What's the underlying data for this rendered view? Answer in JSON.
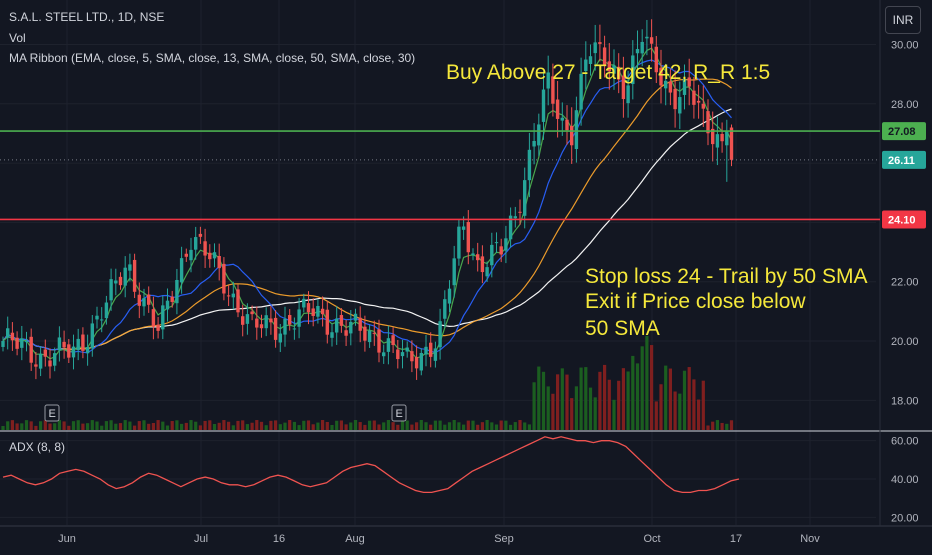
{
  "header": {
    "symbol_line": "S.A.L. STEEL LTD., 1D, NSE",
    "vol_label": "Vol",
    "ribbon_label": "MA Ribbon (EMA, close, 5, SMA, close, 13, SMA, close, 50, SMA, close, 30)",
    "currency": "INR"
  },
  "annotations": {
    "buy": "Buy Above 27 - Target 42, R_R 1:5",
    "stop_lines": [
      "Stop loss 24 - Trail by 50 SMA",
      "Exit if Price close below",
      "50 SMA"
    ]
  },
  "colors": {
    "background": "#131722",
    "up": "#26a69a",
    "down": "#ef5350",
    "vol_up": "#1b5e20",
    "vol_down": "#7f1f1f",
    "ema5": "#4caf50",
    "sma13": "#2962ff",
    "sma50": "#ffffff",
    "sma30": "#f7a22c",
    "adx": "#ef5350",
    "target_line": "#4caf50",
    "stop_line": "#f23645",
    "text_annotation": "#f5e83b"
  },
  "chart_data": [
    {
      "type": "candlestick",
      "title": "S.A.L. STEEL LTD., 1D, NSE",
      "y_axis": {
        "ylim": [
          17.0,
          31.5
        ],
        "ticks": [
          "18.00",
          "20.00",
          "22.00",
          "24.00",
          "26.00",
          "28.00",
          "30.00"
        ],
        "side": "right"
      },
      "x_axis": {
        "tick_labels": [
          "Jun",
          "Jul",
          "16",
          "Aug",
          "Sep",
          "Oct",
          "17",
          "Nov"
        ]
      },
      "price_labels": [
        {
          "value": 27.08,
          "label": "27.08",
          "color": "#4caf50"
        },
        {
          "value": 26.11,
          "label": "26.11",
          "color": "#26a69a"
        },
        {
          "value": 24.1,
          "label": "24.10",
          "color": "#f23645"
        }
      ],
      "horizontal_lines": [
        {
          "value": 27.08,
          "label": "target-entry"
        },
        {
          "value": 24.1,
          "label": "stop-loss"
        }
      ],
      "earnings_markers": [
        "E",
        "E"
      ],
      "moving_averages": [
        "EMA 5",
        "SMA 13",
        "SMA 50",
        "SMA 30"
      ],
      "volume_series": "Vol",
      "grid": true
    },
    {
      "type": "line",
      "title": "ADX (8, 8)",
      "series": [
        {
          "values": [
            41,
            42,
            40,
            38,
            37,
            38,
            40,
            43,
            44,
            45,
            44,
            42,
            40,
            37,
            35,
            36,
            38,
            41,
            43,
            42,
            40,
            38,
            36,
            38,
            40,
            41,
            40,
            38,
            37,
            37,
            36,
            37,
            39,
            41,
            42,
            41,
            39,
            37,
            36,
            37,
            38,
            41,
            44,
            46,
            47,
            48,
            47,
            44,
            41,
            38,
            36,
            34,
            33,
            33,
            34,
            35,
            38,
            41,
            44,
            46,
            48,
            50,
            52,
            54,
            56,
            58,
            60,
            62,
            61,
            62,
            61,
            60,
            60,
            59,
            60,
            60,
            59,
            57,
            53,
            49,
            45,
            41,
            37,
            34,
            33,
            33,
            34,
            34,
            35,
            37,
            39,
            40
          ]
        }
      ],
      "y_axis": {
        "ylim": [
          16.0,
          64.0
        ],
        "ticks": [
          "20.00",
          "40.00",
          "60.00"
        ],
        "side": "right"
      }
    }
  ]
}
